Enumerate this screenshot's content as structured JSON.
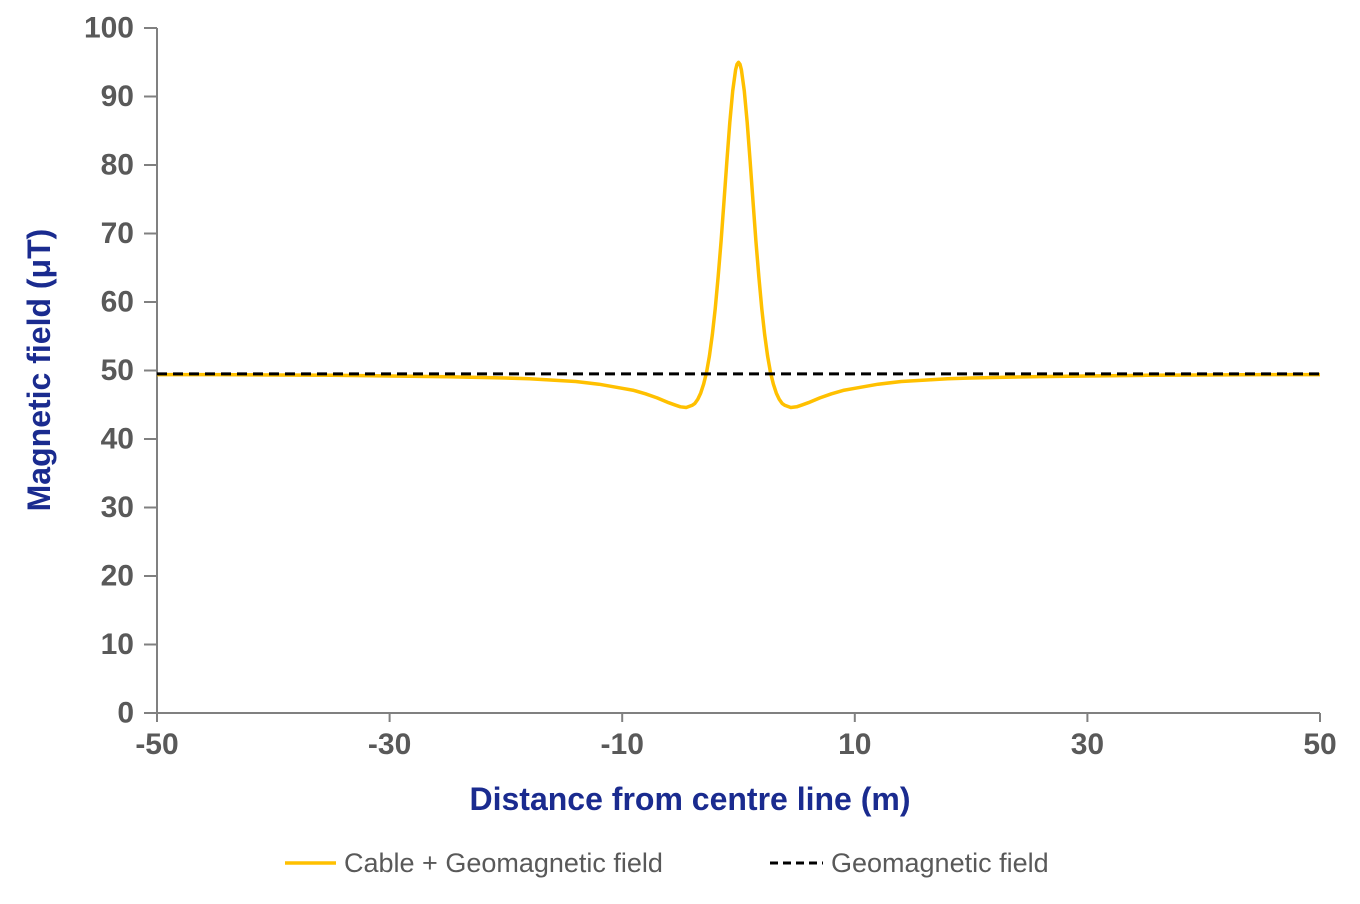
{
  "chart_data": {
    "type": "line",
    "title": "",
    "xlabel": "Distance from centre line (m)",
    "ylabel": "Magnetic field (μT)",
    "xlim": [
      -50,
      50
    ],
    "ylim": [
      0,
      100
    ],
    "x_ticks": [
      -50,
      -30,
      -10,
      10,
      30,
      50
    ],
    "y_ticks": [
      0,
      10,
      20,
      30,
      40,
      50,
      60,
      70,
      80,
      90,
      100
    ],
    "grid": false,
    "legend_position": "bottom",
    "series": [
      {
        "name": "Cable + Geomagnetic field",
        "color": "#FFC000",
        "style": "solid",
        "peak_value": 95.0,
        "peak_x": 0,
        "x": [
          -50,
          -45,
          -40,
          -35,
          -30,
          -25,
          -20,
          -18,
          -16,
          -14,
          -12,
          -10,
          -9,
          -8,
          -7,
          -6,
          -5.5,
          -5,
          -4.5,
          -4,
          -3.75,
          -3.5,
          -3.25,
          -3,
          -2.75,
          -2.5,
          -2.25,
          -2,
          -1.75,
          -1.5,
          -1.25,
          -1,
          -0.75,
          -0.5,
          -0.25,
          -0.125,
          0,
          0.125,
          0.25,
          0.5,
          0.75,
          1,
          1.25,
          1.5,
          1.75,
          2,
          2.25,
          2.5,
          2.75,
          3,
          3.25,
          3.5,
          3.75,
          4,
          4.5,
          5,
          5.5,
          6,
          7,
          8,
          9,
          10,
          12,
          14,
          16,
          18,
          20,
          25,
          30,
          35,
          40,
          45,
          50
        ],
        "y": [
          49.4,
          49.4,
          49.35,
          49.3,
          49.2,
          49.1,
          48.9,
          48.8,
          48.6,
          48.4,
          48.0,
          47.4,
          47.1,
          46.6,
          46.0,
          45.3,
          45.0,
          44.7,
          44.6,
          44.9,
          45.2,
          45.8,
          46.7,
          48.0,
          49.7,
          52.1,
          55.2,
          59.0,
          63.6,
          68.9,
          74.7,
          80.6,
          86.2,
          90.8,
          93.9,
          94.7,
          95.0,
          94.7,
          93.9,
          90.8,
          86.2,
          80.6,
          74.7,
          68.9,
          63.6,
          59.0,
          55.2,
          52.1,
          49.7,
          48.0,
          46.7,
          45.8,
          45.2,
          44.9,
          44.6,
          44.7,
          45.0,
          45.3,
          46.0,
          46.6,
          47.1,
          47.4,
          48.0,
          48.4,
          48.6,
          48.8,
          48.9,
          49.1,
          49.2,
          49.3,
          49.35,
          49.4,
          49.4
        ]
      },
      {
        "name": "Geomagnetic field",
        "color": "#000000",
        "style": "dashed",
        "constant_value": 49.5,
        "x": [
          -50,
          50
        ],
        "y": [
          49.5,
          49.5
        ]
      }
    ]
  },
  "colors": {
    "axis_title": "#1a2b8f",
    "tick_label": "#595959",
    "axis_line": "#808080",
    "legend_text": "#595959",
    "cable_series": "#FFC000",
    "geo_series": "#000000",
    "background": "#ffffff"
  }
}
